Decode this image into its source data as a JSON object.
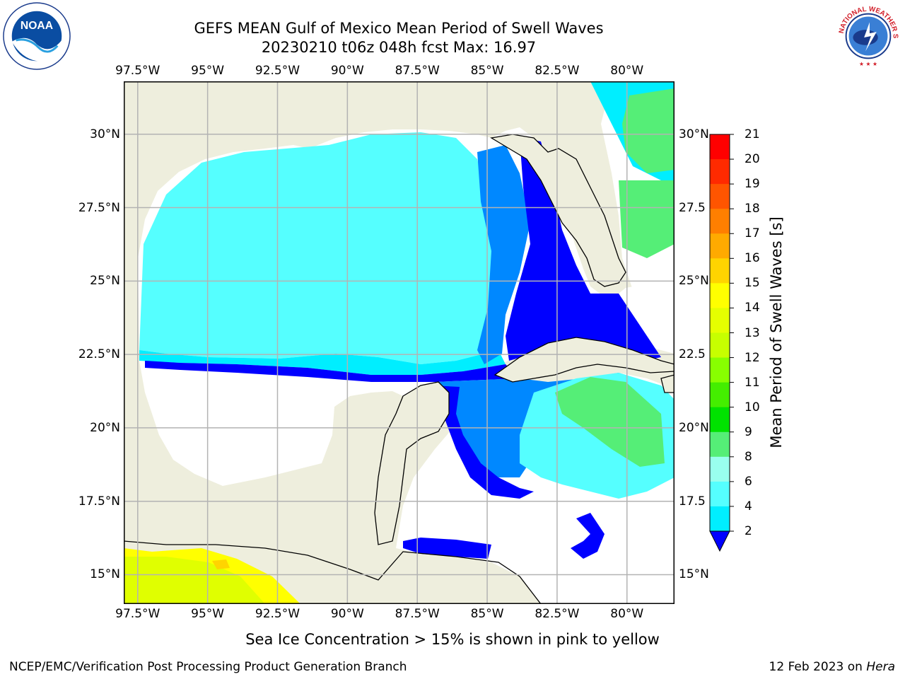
{
  "title": {
    "line1": "GEFS MEAN Gulf of Mexico Mean Period of Swell Waves",
    "line2": "20230210 t06z 048h fcst   Max: 16.97"
  },
  "axes": {
    "lon_ticks": [
      "97.5°W",
      "95°W",
      "92.5°W",
      "90°W",
      "87.5°W",
      "85°W",
      "82.5°W",
      "80°W"
    ],
    "lon_values": [
      -97.5,
      -95,
      -92.5,
      -90,
      -87.5,
      -85,
      -82.5,
      -80
    ],
    "lat_ticks_left": [
      "30°N",
      "27.5°N",
      "25°N",
      "22.5°N",
      "20°N",
      "17.5°N",
      "15°N"
    ],
    "lat_ticks_right": [
      "30°N",
      "27.5",
      "25°N",
      "22.5",
      "20°N",
      "17.5",
      "15°N"
    ],
    "lat_values": [
      30,
      27.5,
      25,
      22.5,
      20,
      17.5,
      15
    ],
    "lon_range": [
      -98,
      -78.3
    ],
    "lat_range": [
      14,
      31.8
    ]
  },
  "colorbar": {
    "title": "Mean Period of Swell Waves [s]",
    "labels": [
      "21",
      "20",
      "19",
      "18",
      "17",
      "16",
      "15",
      "14",
      "13",
      "12",
      "11",
      "10",
      "9",
      "8",
      "6",
      "4",
      "2"
    ],
    "levels": [
      21,
      20,
      19,
      18,
      17,
      16,
      15,
      14,
      13,
      12,
      11,
      10,
      9,
      8,
      6,
      4,
      2
    ],
    "colors": [
      "#ff0000",
      "#ff2a00",
      "#ff5500",
      "#ff7f00",
      "#ffaa00",
      "#ffd400",
      "#ffff00",
      "#e5ff00",
      "#c7ff00",
      "#88ff00",
      "#44ee00",
      "#00e200",
      "#55ee77",
      "#99ffee",
      "#55ffff",
      "#00eeff",
      "#0088ff",
      "#0000ff"
    ],
    "extend": "min"
  },
  "map": {
    "land_color": "#eeeedd",
    "water_color": "#ffffff",
    "grid_color": "#b3b3b3"
  },
  "caption": "Sea Ice Concentration > 15% is shown in pink to yellow",
  "footer": {
    "left": "NCEP/EMC/Verification Post Processing Product Generation Branch",
    "right_prefix": "12 Feb 2023 on ",
    "right_host": "Hera"
  },
  "logos": {
    "noaa_text": "NOAA",
    "nws_text": "NATIONAL WEATHER SERVICE"
  }
}
